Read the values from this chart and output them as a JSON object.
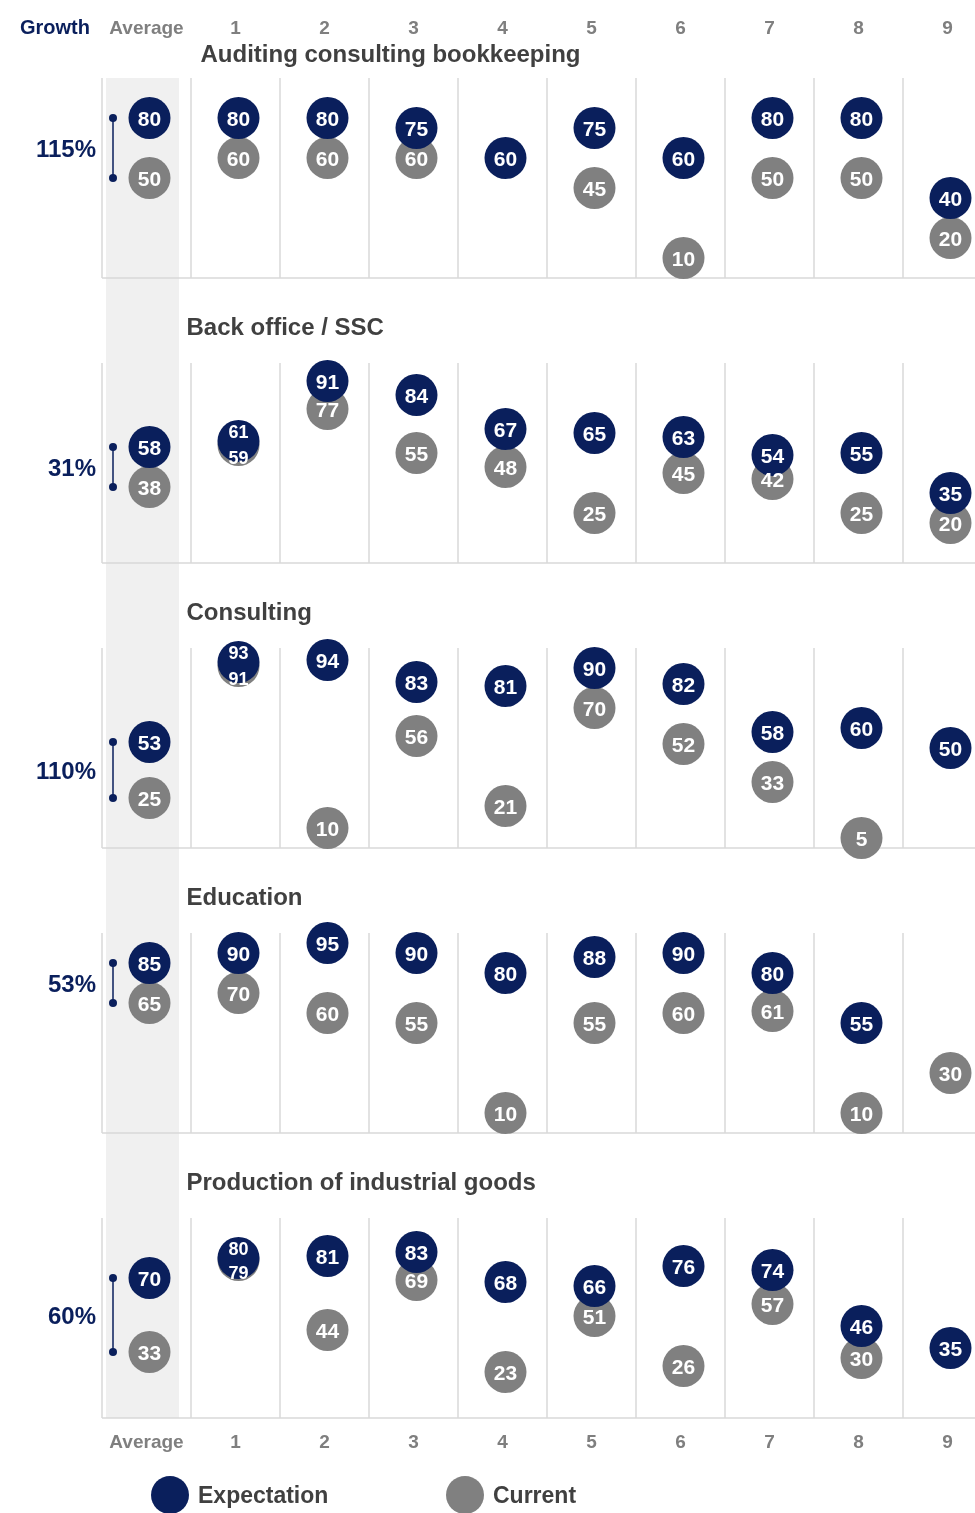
{
  "chart_data": [
    {
      "type": "scatter",
      "title": "Auditing consulting bookkeeping",
      "categories": [
        "Average",
        "1",
        "2",
        "3",
        "4",
        "5",
        "6",
        "7",
        "8",
        "9"
      ],
      "ylim": [
        0,
        100
      ],
      "grid": "x",
      "tick_labels": "x",
      "data_labels": true,
      "marker": "circle",
      "annotations": [
        "Growth",
        "115%"
      ],
      "series": [
        {
          "color": "#0a1f5c",
          "values": [
            80,
            80,
            80,
            75,
            60,
            75,
            60,
            80,
            80,
            40
          ]
        },
        {
          "color": "#808080",
          "values": [
            50,
            60,
            60,
            60,
            null,
            45,
            10,
            50,
            50,
            20
          ]
        }
      ]
    },
    {
      "type": "scatter",
      "title": "Back office / SSC",
      "categories": [
        null,
        null,
        null,
        null,
        null,
        null,
        null,
        null,
        null,
        null
      ],
      "ylim": [
        0,
        100
      ],
      "grid": "x",
      "tick_labels": false,
      "data_labels": true,
      "marker": "circle",
      "annotations": [
        "31%"
      ],
      "series": [
        {
          "color": "#0a1f5c",
          "values": [
            58,
            61,
            91,
            84,
            67,
            65,
            63,
            54,
            55,
            35
          ]
        },
        {
          "color": "#808080",
          "values": [
            38,
            59,
            77,
            55,
            48,
            25,
            45,
            42,
            25,
            20
          ]
        }
      ]
    },
    {
      "type": "scatter",
      "title": "Consulting",
      "categories": [
        null,
        null,
        null,
        null,
        null,
        null,
        null,
        null,
        null,
        null
      ],
      "ylim": [
        0,
        100
      ],
      "grid": "x",
      "tick_labels": false,
      "data_labels": true,
      "marker": "circle",
      "annotations": [
        "110%"
      ],
      "series": [
        {
          "color": "#0a1f5c",
          "values": [
            53,
            93,
            94,
            83,
            81,
            90,
            82,
            58,
            60,
            50
          ]
        },
        {
          "color": "#808080",
          "values": [
            25,
            91,
            10,
            56,
            21,
            70,
            52,
            33,
            5,
            null
          ]
        }
      ]
    },
    {
      "type": "scatter",
      "title": "Education",
      "categories": [
        null,
        null,
        null,
        null,
        null,
        null,
        null,
        null,
        null,
        null
      ],
      "ylim": [
        0,
        100
      ],
      "grid": "x",
      "tick_labels": false,
      "data_labels": true,
      "marker": "circle",
      "annotations": [
        "53%"
      ],
      "series": [
        {
          "color": "#0a1f5c",
          "values": [
            85,
            90,
            95,
            90,
            80,
            88,
            90,
            80,
            55,
            null
          ]
        },
        {
          "color": "#808080",
          "values": [
            65,
            70,
            60,
            55,
            10,
            55,
            60,
            61,
            10,
            30
          ]
        }
      ]
    },
    {
      "type": "scatter",
      "title": "Production of industrial goods",
      "categories": [
        "Average",
        "1",
        "2",
        "3",
        "4",
        "5",
        "6",
        "7",
        "8",
        "9"
      ],
      "bands": [
        {
          "axis": "x",
          "from": "Average",
          "to": "Average",
          "color": "#f0f0f0"
        }
      ],
      "ylim": [
        0,
        100
      ],
      "grid": "x",
      "tick_labels": "x",
      "data_labels": true,
      "marker": "circle",
      "legend": "bottom",
      "annotations": [
        "60%"
      ],
      "series": [
        {
          "name": "Expectation",
          "color": "#0a1f5c",
          "values": [
            70,
            80,
            81,
            83,
            68,
            66,
            76,
            74,
            46,
            35
          ]
        },
        {
          "name": "Current",
          "color": "#808080",
          "values": [
            33,
            79,
            44,
            69,
            23,
            51,
            26,
            57,
            30,
            null
          ]
        }
      ]
    }
  ]
}
